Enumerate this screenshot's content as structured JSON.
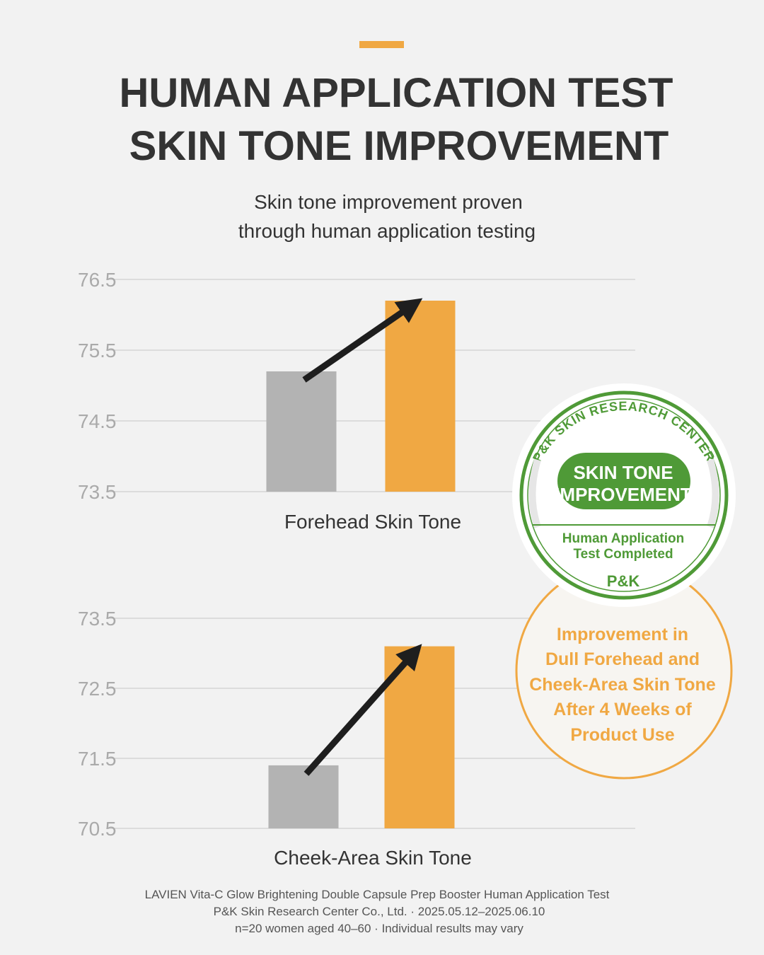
{
  "header": {
    "title_lines": [
      "HUMAN APPLICATION TEST",
      "SKIN TONE IMPROVEMENT"
    ],
    "subtitle_lines": [
      "Skin tone improvement proven",
      "through human application testing"
    ]
  },
  "chart_data": [
    {
      "type": "bar",
      "xlabel": "Forehead Skin Tone",
      "values": [
        75.2,
        76.2
      ],
      "colors": [
        "#b3b3b3",
        "#f0a843"
      ],
      "ylim": [
        73.5,
        76.5
      ],
      "yticks": [
        73.5,
        74.5,
        75.5,
        76.5
      ],
      "grid": true
    },
    {
      "type": "bar",
      "xlabel": "Cheek-Area Skin Tone",
      "values": [
        71.4,
        73.1
      ],
      "colors": [
        "#b3b3b3",
        "#f0a843"
      ],
      "ylim": [
        70.5,
        73.5
      ],
      "yticks": [
        70.5,
        71.5,
        72.5,
        73.5
      ],
      "grid": true
    }
  ],
  "badge": {
    "ring_text": "P&K SKIN RESEARCH CENTER",
    "title_lines": [
      "SKIN TONE",
      "IMPROVEMENT"
    ],
    "subtitle_lines": [
      "Human Application",
      "Test Completed"
    ],
    "logo": "P&K"
  },
  "callout": {
    "lines": [
      "Improvement in",
      "Dull Forehead and",
      "Cheek-Area Skin Tone",
      "After 4 Weeks of",
      "Product Use"
    ]
  },
  "footnotes": [
    "LAVIEN Vita-C Glow Brightening Double Capsule Prep Booster Human Application Test",
    "P&K Skin Research Center Co., Ltd. · 2025.05.12–2025.06.10",
    "n=20 women aged 40–60 · Individual results may vary"
  ]
}
